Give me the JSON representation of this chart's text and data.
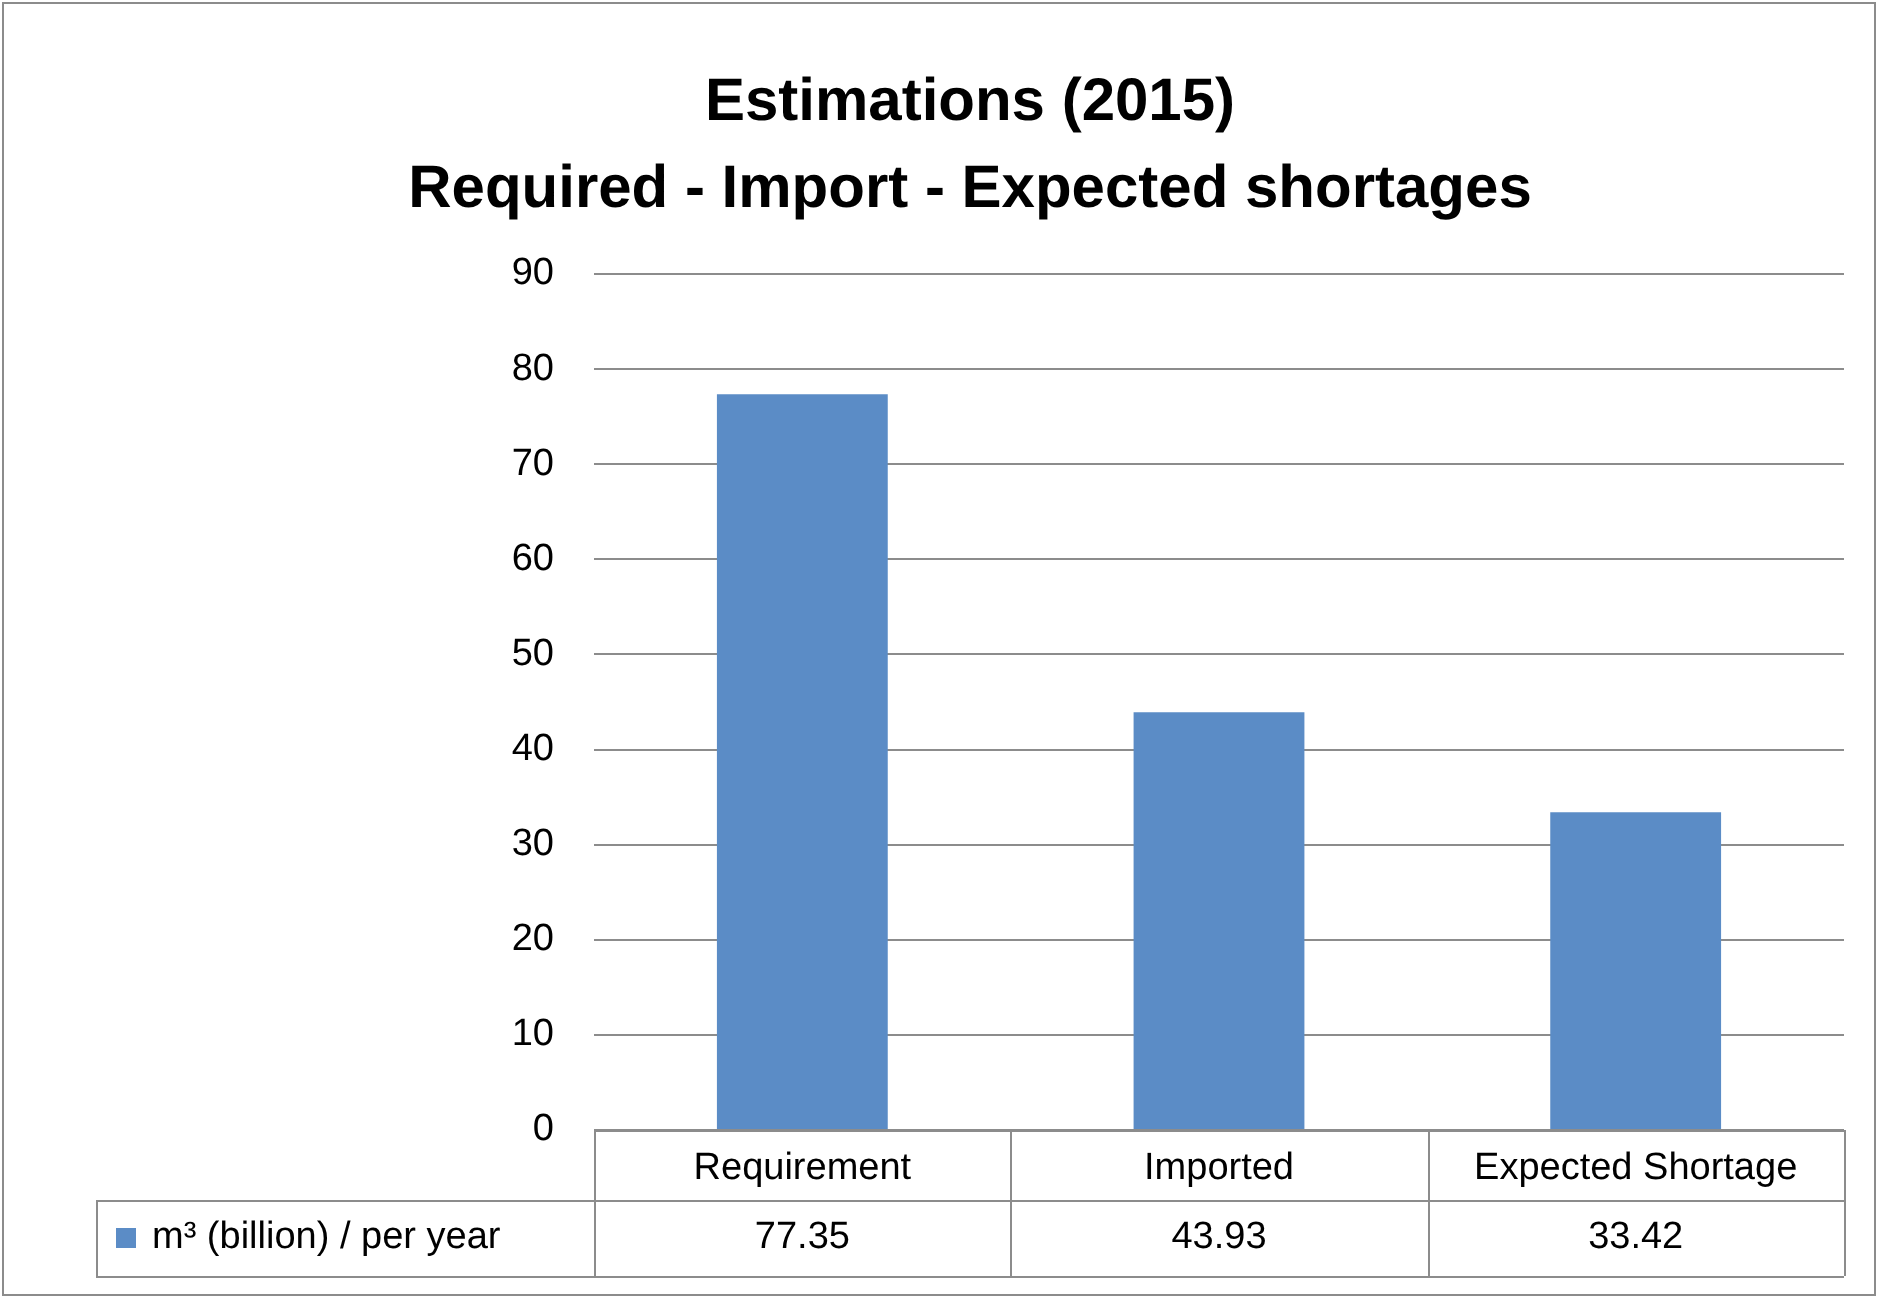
{
  "chart_data": {
    "type": "bar",
    "title": "Estimations (2015)\nRequired - Import - Expected shortages",
    "categories": [
      "Requirement",
      "Imported",
      "Expected Shortage"
    ],
    "series": [
      {
        "name": "m³ (billion) / per year",
        "color": "#5b8cc6",
        "values": [
          77.35,
          43.93,
          33.42
        ]
      }
    ],
    "ylim": [
      0,
      90
    ],
    "yticks": [
      0,
      10,
      20,
      30,
      40,
      50,
      60,
      70,
      80,
      90
    ],
    "grid": "y",
    "data_labels": true,
    "legend": "bottom"
  }
}
